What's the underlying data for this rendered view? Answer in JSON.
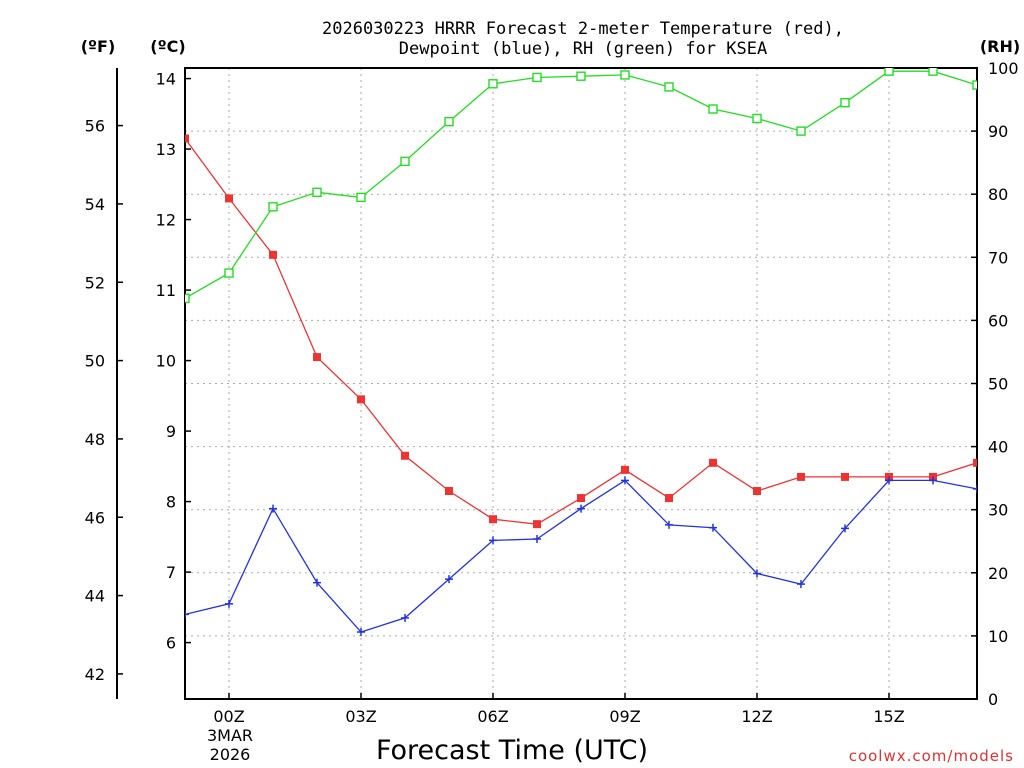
{
  "title_line1": "2026030223 HRRR Forecast 2-meter Temperature (red),",
  "title_line2": "Dewpoint (blue), RH (green) for KSEA",
  "watermark": "coolwx.com/models",
  "chart_data": {
    "type": "line",
    "title": "2026030223 HRRR Forecast 2-meter Temperature (red), Dewpoint (blue), RH (green) for KSEA",
    "xlabel": "Forecast Time (UTC)",
    "date_label_line1": "3MAR",
    "date_label_line2": "2026",
    "x_hours": [
      -1,
      0,
      1,
      2,
      3,
      4,
      5,
      6,
      7,
      8,
      9,
      10,
      11,
      12,
      13,
      14,
      15,
      16,
      17
    ],
    "xlim": [
      -1,
      17
    ],
    "x_ticks": [
      0,
      3,
      6,
      9,
      12,
      15
    ],
    "x_tick_labels": [
      "00Z",
      "03Z",
      "06Z",
      "09Z",
      "12Z",
      "15Z"
    ],
    "left_axis_f": {
      "label": "(ºF)",
      "ticks": [
        42,
        44,
        46,
        48,
        50,
        52,
        54,
        56
      ]
    },
    "left_axis_c": {
      "label": "(ºC)",
      "ylim": [
        5.2,
        14.15
      ],
      "ticks": [
        6,
        7,
        8,
        9,
        10,
        11,
        12,
        13,
        14
      ]
    },
    "right_axis": {
      "label": "(RH)",
      "ylim": [
        0,
        100
      ],
      "ticks": [
        0,
        10,
        20,
        30,
        40,
        50,
        60,
        70,
        80,
        90,
        100
      ]
    },
    "series": [
      {
        "name": "Temperature",
        "axis": "C",
        "color": "#ee3333",
        "marker": "filled-square",
        "values": [
          13.15,
          12.3,
          11.5,
          10.05,
          9.45,
          8.65,
          8.15,
          7.75,
          7.68,
          8.05,
          8.45,
          8.05,
          8.55,
          8.15,
          8.35,
          8.35,
          8.35,
          8.35,
          8.55
        ]
      },
      {
        "name": "Dewpoint",
        "axis": "C",
        "color": "#2233dd",
        "marker": "plus",
        "values": [
          6.4,
          6.55,
          7.9,
          6.85,
          6.15,
          6.35,
          6.9,
          7.45,
          7.47,
          7.9,
          8.3,
          7.67,
          7.63,
          6.98,
          6.83,
          7.62,
          8.3,
          8.3,
          8.18
        ]
      },
      {
        "name": "RH",
        "axis": "RH",
        "color": "#22dd22",
        "marker": "open-square",
        "values": [
          63.5,
          67.5,
          78,
          80.3,
          79.5,
          85.2,
          91.5,
          97.5,
          98.5,
          98.7,
          98.9,
          97,
          93.5,
          92,
          90,
          94.5,
          99.5,
          99.5,
          97.3
        ]
      }
    ]
  }
}
